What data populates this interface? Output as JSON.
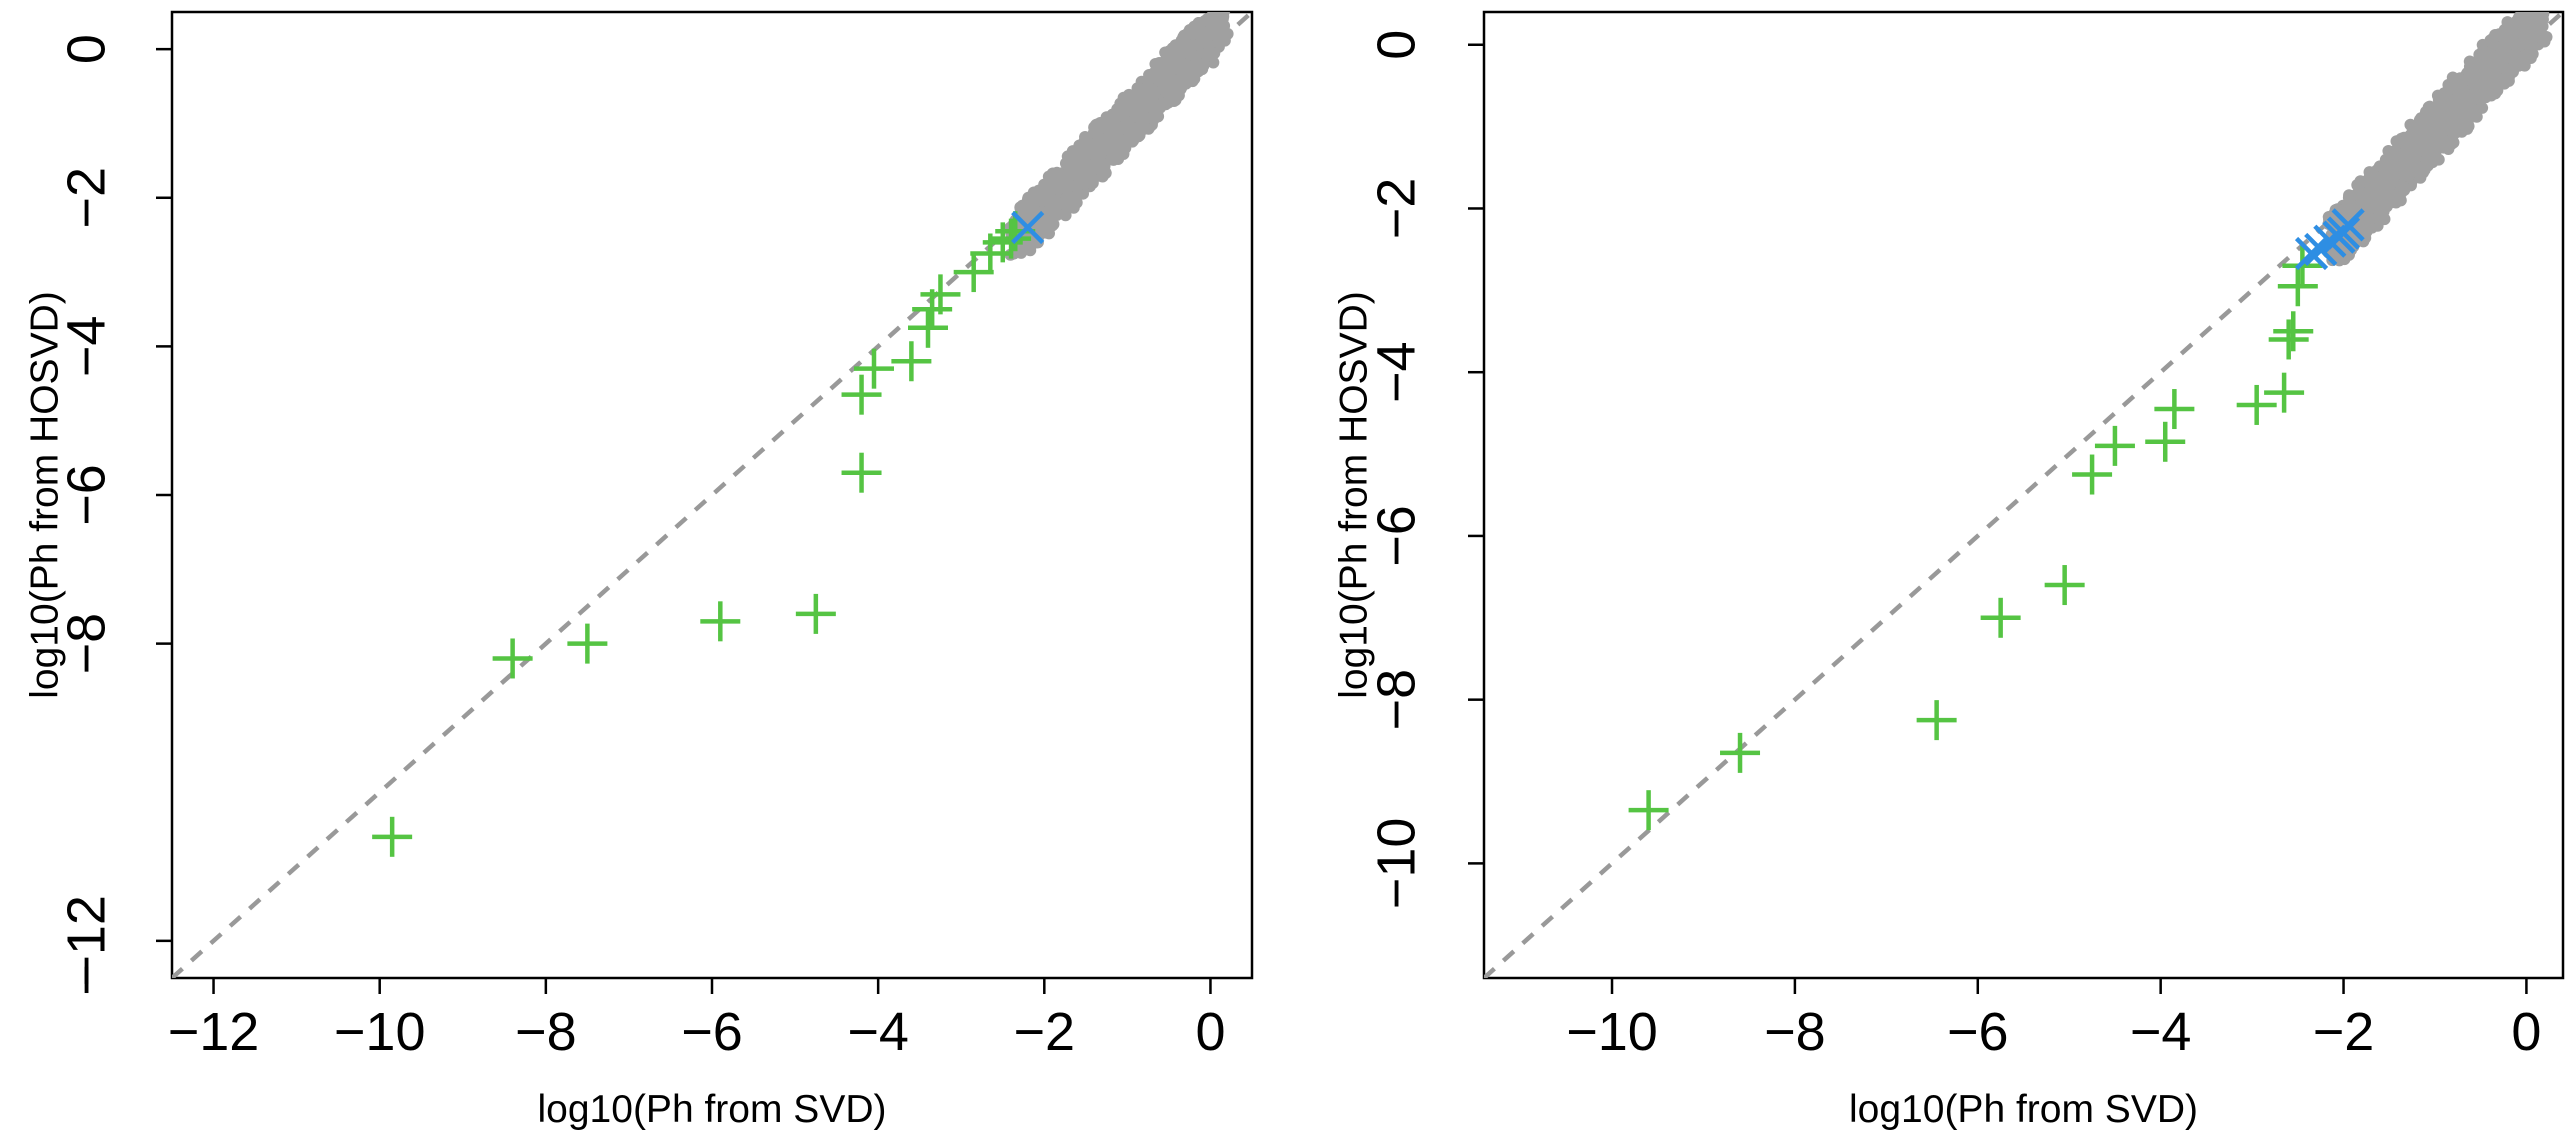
{
  "chart_data": [
    {
      "type": "scatter",
      "panel": "left",
      "xlabel": "log10(Ph from SVD)",
      "ylabel": "log10(Ph from HOSVD)",
      "xlim": [
        -12.5,
        0.5
      ],
      "ylim": [
        -12.5,
        0.5
      ],
      "x_ticks": [
        -12,
        -10,
        -8,
        -6,
        -4,
        -2,
        0
      ],
      "x_tick_labels": [
        "−12",
        "−10",
        "−8",
        "−6",
        "−4",
        "−2",
        "0"
      ],
      "y_ticks": [
        -12,
        -8,
        -6,
        -4,
        -2,
        0
      ],
      "y_tick_labels": [
        "−12",
        "−8",
        "−6",
        "−4",
        "−2",
        "0"
      ],
      "corner_label": "−",
      "reference_line": {
        "style": "dashed",
        "color": "#999999",
        "slope": 1,
        "intercept": 0
      },
      "background_cloud": {
        "color": "#a0a0a0",
        "x_range": [
          -2.3,
          0.1
        ],
        "y_range": [
          -2.5,
          0.3
        ]
      },
      "series": [
        {
          "name": "green",
          "color": "#55c443",
          "marker": "+",
          "points": [
            [
              -9.85,
              -10.6
            ],
            [
              -8.4,
              -8.2
            ],
            [
              -7.5,
              -8.0
            ],
            [
              -5.9,
              -7.7
            ],
            [
              -4.75,
              -7.6
            ],
            [
              -4.2,
              -5.7
            ],
            [
              -4.2,
              -4.65
            ],
            [
              -4.05,
              -4.3
            ],
            [
              -3.6,
              -4.2
            ],
            [
              -3.4,
              -3.75
            ],
            [
              -3.35,
              -3.5
            ],
            [
              -3.25,
              -3.3
            ],
            [
              -2.85,
              -3.0
            ],
            [
              -2.65,
              -2.75
            ],
            [
              -2.5,
              -2.6
            ],
            [
              -2.4,
              -2.55
            ],
            [
              -2.35,
              -2.45
            ]
          ]
        },
        {
          "name": "blue",
          "color": "#2e8ee3",
          "marker": "x",
          "points": [
            [
              -2.2,
              -2.4
            ]
          ]
        }
      ]
    },
    {
      "type": "scatter",
      "panel": "right",
      "xlabel": "log10(Ph from SVD)",
      "ylabel": "log10(Ph from HOSVD)",
      "xlim": [
        -11.4,
        0.4
      ],
      "ylim": [
        -11.4,
        0.4
      ],
      "x_ticks": [
        -10,
        -8,
        -6,
        -4,
        -2,
        0
      ],
      "x_tick_labels": [
        "−10",
        "−8",
        "−6",
        "−4",
        "−2",
        "0"
      ],
      "y_ticks": [
        -10,
        -8,
        -6,
        -4,
        -2,
        0
      ],
      "y_tick_labels": [
        "−10",
        "−8",
        "−6",
        "−4",
        "−2",
        "0"
      ],
      "reference_line": {
        "style": "dashed",
        "color": "#999999",
        "slope": 1,
        "intercept": 0
      },
      "background_cloud": {
        "color": "#a0a0a0",
        "x_range": [
          -2.1,
          0.1
        ],
        "y_range": [
          -2.4,
          0.3
        ]
      },
      "series": [
        {
          "name": "green",
          "color": "#55c443",
          "marker": "+",
          "points": [
            [
              -9.6,
              -9.35
            ],
            [
              -8.6,
              -8.65
            ],
            [
              -6.45,
              -8.25
            ],
            [
              -5.75,
              -7.0
            ],
            [
              -5.05,
              -6.6
            ],
            [
              -4.75,
              -5.25
            ],
            [
              -4.5,
              -4.9
            ],
            [
              -3.95,
              -4.85
            ],
            [
              -3.85,
              -4.45
            ],
            [
              -2.95,
              -4.4
            ],
            [
              -2.65,
              -4.25
            ],
            [
              -2.6,
              -3.6
            ],
            [
              -2.55,
              -3.5
            ],
            [
              -2.5,
              -2.95
            ],
            [
              -2.45,
              -2.7
            ]
          ]
        },
        {
          "name": "blue",
          "color": "#2e8ee3",
          "marker": "x",
          "points": [
            [
              -2.35,
              -2.55
            ],
            [
              -2.25,
              -2.5
            ],
            [
              -2.15,
              -2.4
            ],
            [
              -2.05,
              -2.35
            ],
            [
              -1.95,
              -2.2
            ],
            [
              -2.0,
              -2.3
            ]
          ]
        }
      ]
    }
  ]
}
